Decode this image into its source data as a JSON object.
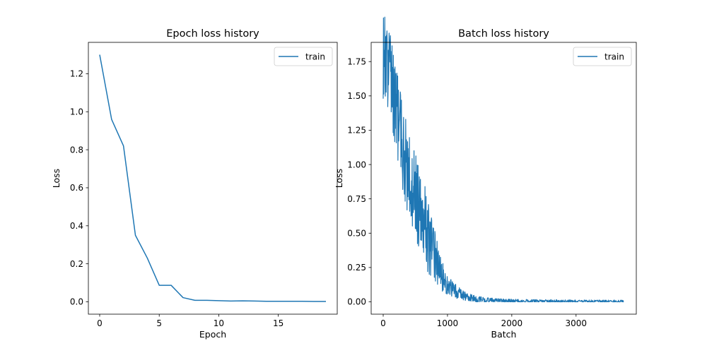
{
  "chart_data": [
    {
      "type": "line",
      "title": "Epoch loss history",
      "xlabel": "Epoch",
      "ylabel": "Loss",
      "xlim": [
        -0.95,
        19.95
      ],
      "ylim": [
        -0.065,
        1.365
      ],
      "xticks": [
        0,
        5,
        10,
        15
      ],
      "xtick_labels": [
        "0",
        "5",
        "10",
        "15"
      ],
      "yticks": [
        0.0,
        0.2,
        0.4,
        0.6,
        0.8,
        1.0,
        1.2
      ],
      "ytick_labels": [
        "0.0",
        "0.2",
        "0.4",
        "0.6",
        "0.8",
        "1.0",
        "1.2"
      ],
      "grid": false,
      "legend_position": "top-right",
      "series": [
        {
          "name": "train",
          "color": "#1f77b4",
          "x": [
            0,
            1,
            2,
            3,
            4,
            5,
            6,
            7,
            8,
            9,
            10,
            11,
            12,
            13,
            14,
            15,
            16,
            17,
            18,
            19
          ],
          "y": [
            1.3,
            0.96,
            0.82,
            0.35,
            0.23,
            0.087,
            0.087,
            0.022,
            0.008,
            0.008,
            0.006,
            0.004,
            0.005,
            0.004,
            0.003,
            0.003,
            0.003,
            0.003,
            0.002,
            0.002
          ]
        }
      ]
    },
    {
      "type": "line",
      "title": "Batch loss history",
      "xlabel": "Batch",
      "ylabel": "Loss",
      "xlim": [
        -187,
        3937
      ],
      "ylim": [
        -0.09,
        1.89
      ],
      "xticks": [
        0,
        1000,
        2000,
        3000
      ],
      "xtick_labels": [
        "0",
        "1000",
        "2000",
        "3000"
      ],
      "yticks": [
        0.0,
        0.25,
        0.5,
        0.75,
        1.0,
        1.25,
        1.5,
        1.75
      ],
      "ytick_labels": [
        "0.00",
        "0.25",
        "0.50",
        "0.75",
        "1.00",
        "1.25",
        "1.50",
        "1.75"
      ],
      "grid": false,
      "legend_position": "top-right",
      "series": [
        {
          "name": "train",
          "color": "#1f77b4",
          "x": [
            0,
            25,
            50,
            75,
            100,
            125,
            150,
            175,
            200,
            225,
            250,
            275,
            300,
            325,
            350,
            375,
            400,
            425,
            450,
            475,
            500,
            525,
            550,
            575,
            600,
            625,
            650,
            675,
            700,
            725,
            750,
            775,
            800,
            825,
            850,
            875,
            900,
            925,
            950,
            975,
            1000,
            1050,
            1100,
            1150,
            1200,
            1250,
            1300,
            1350,
            1400,
            1450,
            1500,
            1600,
            1700,
            1800,
            1900,
            2000,
            2200,
            2400,
            2600,
            2800,
            3000,
            3200,
            3400,
            3600,
            3740
          ],
          "y": [
            1.8,
            1.79,
            1.74,
            1.7,
            1.66,
            1.62,
            1.55,
            1.48,
            1.4,
            1.34,
            1.26,
            1.2,
            1.14,
            1.09,
            1.03,
            0.98,
            0.94,
            0.9,
            0.85,
            0.8,
            0.77,
            0.74,
            0.7,
            0.66,
            0.63,
            0.59,
            0.56,
            0.52,
            0.48,
            0.45,
            0.41,
            0.38,
            0.34,
            0.3,
            0.27,
            0.24,
            0.21,
            0.18,
            0.155,
            0.135,
            0.12,
            0.1,
            0.085,
            0.07,
            0.058,
            0.048,
            0.038,
            0.032,
            0.027,
            0.022,
            0.018,
            0.014,
            0.011,
            0.009,
            0.007,
            0.006,
            0.005,
            0.004,
            0.004,
            0.003,
            0.003,
            0.003,
            0.002,
            0.002,
            0.002
          ]
        }
      ]
    }
  ]
}
